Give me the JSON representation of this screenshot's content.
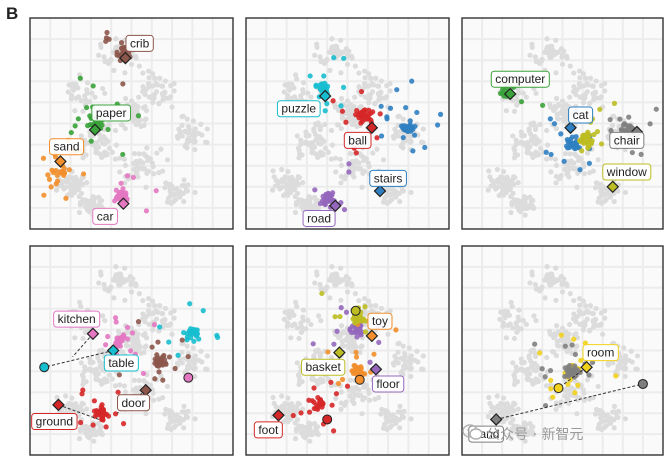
{
  "figure_label": "B",
  "watermark": "公众号 · 新智元",
  "colors": {
    "blue": "#2f7fc1",
    "orange": "#f28e2b",
    "green": "#3aa23a",
    "red": "#d62728",
    "purple": "#9467bd",
    "brown": "#8c564b",
    "pink": "#e377c2",
    "gray": "#7f7f7f",
    "olive": "#bcbd22",
    "cyan": "#17becf",
    "yellow": "#f2d21b",
    "background_points": "#dcdcdc",
    "grid": "#ececec",
    "frame": "#333333"
  },
  "chart_data": [
    {
      "type": "scatter",
      "panel": 1,
      "xlim": [
        0,
        1
      ],
      "ylim": [
        0,
        1
      ],
      "grid": true,
      "clusters": [
        {
          "color": "brown",
          "cx": 0.46,
          "cy": 0.17,
          "n": 30
        },
        {
          "color": "green",
          "cx": 0.32,
          "cy": 0.5,
          "n": 35
        },
        {
          "color": "orange",
          "cx": 0.15,
          "cy": 0.73,
          "n": 28
        },
        {
          "color": "pink",
          "cx": 0.46,
          "cy": 0.84,
          "n": 32
        }
      ],
      "annotations": [
        {
          "text": "crib",
          "color": "brown",
          "point": [
            0.47,
            0.19
          ],
          "label": [
            0.54,
            0.12
          ]
        },
        {
          "text": "paper",
          "color": "green",
          "point": [
            0.32,
            0.53
          ],
          "label": [
            0.4,
            0.45
          ]
        },
        {
          "text": "sand",
          "color": "orange",
          "point": [
            0.15,
            0.68
          ],
          "label": [
            0.18,
            0.61
          ]
        },
        {
          "text": "car",
          "color": "pink",
          "point": [
            0.46,
            0.88
          ],
          "label": [
            0.37,
            0.94
          ]
        }
      ]
    },
    {
      "type": "scatter",
      "panel": 2,
      "xlim": [
        0,
        1
      ],
      "ylim": [
        0,
        1
      ],
      "grid": true,
      "clusters": [
        {
          "color": "cyan",
          "cx": 0.38,
          "cy": 0.33,
          "n": 30
        },
        {
          "color": "red",
          "cx": 0.58,
          "cy": 0.46,
          "n": 40
        },
        {
          "color": "blue",
          "cx": 0.8,
          "cy": 0.52,
          "n": 40
        },
        {
          "color": "purple",
          "cx": 0.4,
          "cy": 0.86,
          "n": 35
        }
      ],
      "annotations": [
        {
          "text": "puzzle",
          "color": "cyan",
          "point": [
            0.39,
            0.37
          ],
          "label": [
            0.26,
            0.43
          ]
        },
        {
          "text": "ball",
          "color": "red",
          "point": [
            0.62,
            0.52
          ],
          "label": [
            0.55,
            0.58
          ]
        },
        {
          "text": "stairs",
          "color": "blue",
          "point": [
            0.66,
            0.82
          ],
          "label": [
            0.7,
            0.76
          ]
        },
        {
          "text": "road",
          "color": "purple",
          "point": [
            0.44,
            0.89
          ],
          "label": [
            0.36,
            0.95
          ]
        }
      ]
    },
    {
      "type": "scatter",
      "panel": 3,
      "xlim": [
        0,
        1
      ],
      "ylim": [
        0,
        1
      ],
      "grid": true,
      "clusters": [
        {
          "color": "green",
          "cx": 0.22,
          "cy": 0.34,
          "n": 18
        },
        {
          "color": "blue",
          "cx": 0.55,
          "cy": 0.6,
          "n": 40
        },
        {
          "color": "gray",
          "cx": 0.82,
          "cy": 0.52,
          "n": 30
        },
        {
          "color": "olive",
          "cx": 0.62,
          "cy": 0.58,
          "n": 40
        }
      ],
      "annotations": [
        {
          "text": "computer",
          "color": "green",
          "point": [
            0.24,
            0.36
          ],
          "label": [
            0.29,
            0.29
          ]
        },
        {
          "text": "cat",
          "color": "blue",
          "point": [
            0.54,
            0.52
          ],
          "label": [
            0.59,
            0.46
          ]
        },
        {
          "text": "chair",
          "color": "gray",
          "point": [
            0.87,
            0.54
          ],
          "label": [
            0.82,
            0.58
          ]
        },
        {
          "text": "window",
          "color": "olive",
          "point": [
            0.75,
            0.8
          ],
          "label": [
            0.82,
            0.73
          ]
        }
      ]
    },
    {
      "type": "scatter",
      "panel": 4,
      "xlim": [
        0,
        1
      ],
      "ylim": [
        0,
        1
      ],
      "grid": true,
      "clusters": [
        {
          "color": "cyan",
          "cx": 0.8,
          "cy": 0.42,
          "n": 30
        },
        {
          "color": "pink",
          "cx": 0.45,
          "cy": 0.45,
          "n": 35
        },
        {
          "color": "brown",
          "cx": 0.65,
          "cy": 0.55,
          "n": 35
        },
        {
          "color": "red",
          "cx": 0.35,
          "cy": 0.8,
          "n": 40
        }
      ],
      "annotations": [
        {
          "text": "kitchen",
          "color": "pink",
          "point": [
            0.31,
            0.42
          ],
          "label": [
            0.23,
            0.35
          ],
          "link": [
            0.21,
            0.53
          ]
        },
        {
          "text": "table",
          "color": "cyan",
          "point": [
            0.41,
            0.5
          ],
          "label": [
            0.45,
            0.56
          ],
          "link": [
            0.07,
            0.58
          ]
        },
        {
          "text": "door",
          "color": "brown",
          "point": [
            0.57,
            0.69
          ],
          "label": [
            0.51,
            0.75
          ],
          "link": [
            0.43,
            0.8
          ]
        },
        {
          "text": "ground",
          "color": "red",
          "point": [
            0.14,
            0.76
          ],
          "label": [
            0.12,
            0.84
          ],
          "link": [
            0.34,
            0.83
          ]
        }
      ],
      "extra_markers": [
        {
          "color": "cyan",
          "point": [
            0.07,
            0.58
          ]
        },
        {
          "color": "pink",
          "point": [
            0.78,
            0.63
          ]
        }
      ]
    },
    {
      "type": "scatter",
      "panel": 5,
      "xlim": [
        0,
        1
      ],
      "ylim": [
        0,
        1
      ],
      "grid": true,
      "clusters": [
        {
          "color": "purple",
          "cx": 0.55,
          "cy": 0.4,
          "n": 35
        },
        {
          "color": "orange",
          "cx": 0.55,
          "cy": 0.6,
          "n": 40
        },
        {
          "color": "olive",
          "cx": 0.55,
          "cy": 0.35,
          "n": 25
        },
        {
          "color": "red",
          "cx": 0.35,
          "cy": 0.75,
          "n": 30
        }
      ],
      "annotations": [
        {
          "text": "toy",
          "color": "orange",
          "point": [
            0.62,
            0.43
          ],
          "label": [
            0.66,
            0.36
          ]
        },
        {
          "text": "basket",
          "color": "olive",
          "point": [
            0.46,
            0.51
          ],
          "label": [
            0.38,
            0.58
          ]
        },
        {
          "text": "floor",
          "color": "purple",
          "point": [
            0.64,
            0.59
          ],
          "label": [
            0.7,
            0.66
          ]
        },
        {
          "text": "foot",
          "color": "red",
          "point": [
            0.16,
            0.81
          ],
          "label": [
            0.11,
            0.88
          ]
        }
      ],
      "extra_markers": [
        {
          "color": "olive",
          "point": [
            0.54,
            0.31
          ]
        },
        {
          "color": "orange",
          "point": [
            0.56,
            0.64
          ]
        },
        {
          "color": "red",
          "point": [
            0.4,
            0.83
          ]
        }
      ]
    },
    {
      "type": "scatter",
      "panel": 6,
      "xlim": [
        0,
        1
      ],
      "ylim": [
        0,
        1
      ],
      "grid": true,
      "clusters": [
        {
          "color": "yellow",
          "cx": 0.55,
          "cy": 0.6,
          "n": 55
        },
        {
          "color": "gray",
          "cx": 0.55,
          "cy": 0.6,
          "n": 45
        }
      ],
      "annotations": [
        {
          "text": "room",
          "color": "yellow",
          "point": [
            0.62,
            0.58
          ],
          "label": [
            0.69,
            0.51
          ],
          "link": [
            0.48,
            0.68
          ]
        },
        {
          "text": "hand",
          "color": "gray",
          "point": [
            0.17,
            0.83
          ],
          "label": [
            0.12,
            0.9
          ],
          "link": [
            0.9,
            0.66
          ]
        }
      ],
      "extra_markers": [
        {
          "color": "yellow",
          "point": [
            0.48,
            0.68
          ]
        },
        {
          "color": "gray",
          "point": [
            0.9,
            0.66
          ]
        }
      ]
    }
  ]
}
